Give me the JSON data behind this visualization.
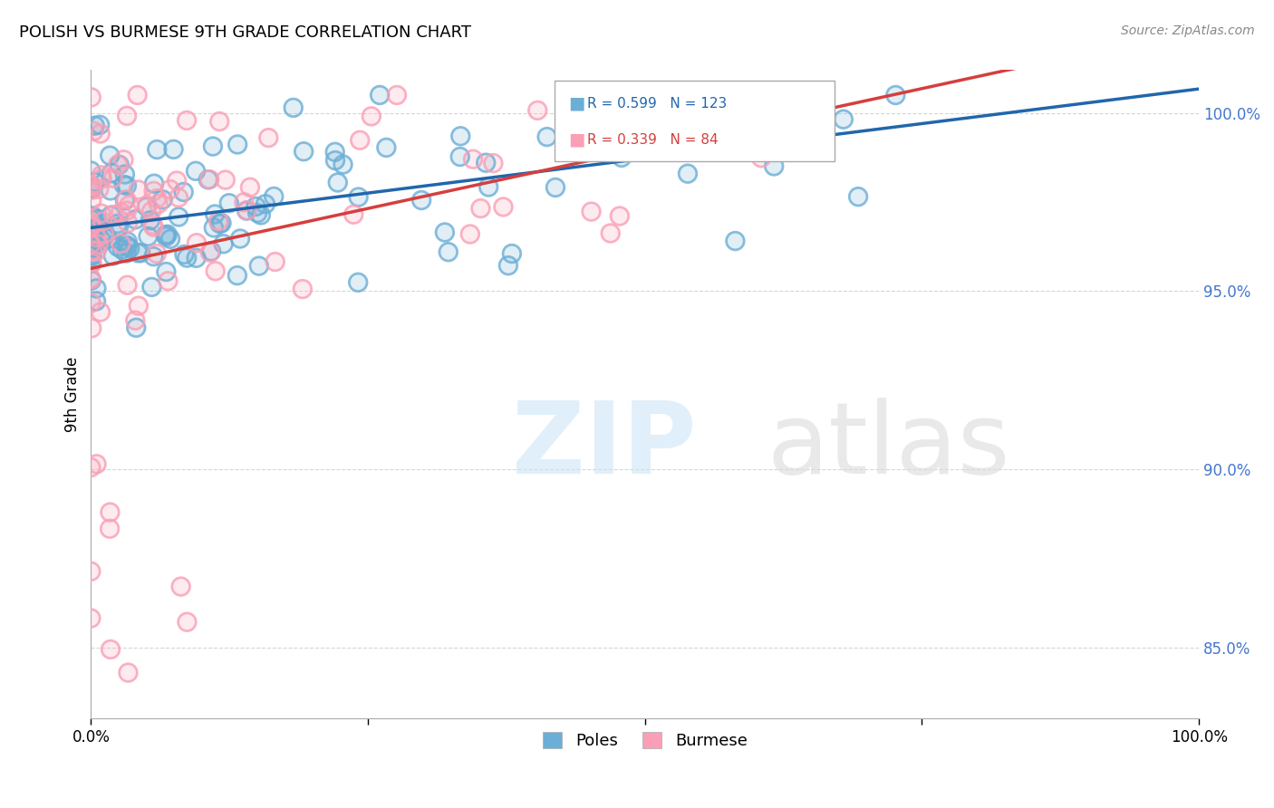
{
  "title": "POLISH VS BURMESE 9TH GRADE CORRELATION CHART",
  "source": "Source: ZipAtlas.com",
  "ylabel": "9th Grade",
  "ytick_labels": [
    "85.0%",
    "90.0%",
    "95.0%",
    "100.0%"
  ],
  "ytick_values": [
    0.85,
    0.9,
    0.95,
    1.0
  ],
  "legend_poles": "Poles",
  "legend_burmese": "Burmese",
  "R_poles": 0.599,
  "N_poles": 123,
  "R_burmese": 0.339,
  "N_burmese": 84,
  "poles_color": "#6baed6",
  "burmese_color": "#fa9fb5",
  "trendline_poles_color": "#2166ac",
  "trendline_burmese_color": "#d63e3e",
  "background_color": "#ffffff",
  "xlim": [
    0,
    1
  ],
  "ylim": [
    0.83,
    1.012
  ]
}
